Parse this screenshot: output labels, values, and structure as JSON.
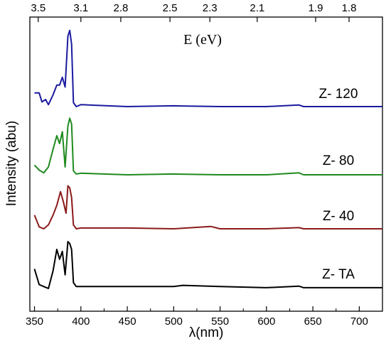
{
  "chart_data": {
    "type": "line",
    "xlabel": "λ(nm)",
    "ylabel": "Intensity (abu)",
    "top_axis_label": "E (eV)",
    "xlim": [
      345,
      725
    ],
    "x_ticks": [
      350,
      400,
      450,
      500,
      550,
      600,
      650,
      700
    ],
    "top_ticks": [
      {
        "label": "3.5",
        "nm": 354
      },
      {
        "label": "3.1",
        "nm": 400
      },
      {
        "label": "2.8",
        "nm": 443
      },
      {
        "label": "2.5",
        "nm": 496
      },
      {
        "label": "2.3",
        "nm": 539
      },
      {
        "label": "2.1",
        "nm": 590
      },
      {
        "label": "1.9",
        "nm": 653
      },
      {
        "label": "1.8",
        "nm": 689
      }
    ],
    "y_ticks_shown": false,
    "grid": false,
    "series": [
      {
        "name": "Z- 120",
        "color": "#1a1aa0",
        "points": [
          [
            350,
            0.35
          ],
          [
            355,
            0.35
          ],
          [
            358,
            0.12
          ],
          [
            362,
            0.18
          ],
          [
            365,
            0.05
          ],
          [
            370,
            0.3
          ],
          [
            374,
            0.55
          ],
          [
            377,
            0.55
          ],
          [
            380,
            0.75
          ],
          [
            383,
            0.5
          ],
          [
            386,
            1.8
          ],
          [
            388,
            1.95
          ],
          [
            390,
            1.6
          ],
          [
            392,
            0.1
          ],
          [
            395,
            0.0
          ],
          [
            400,
            0.05
          ],
          [
            450,
            0.0
          ],
          [
            500,
            0.02
          ],
          [
            550,
            0.0
          ],
          [
            600,
            0.0
          ],
          [
            635,
            0.04
          ],
          [
            640,
            0.0
          ],
          [
            700,
            0.0
          ],
          [
            725,
            0.0
          ]
        ]
      },
      {
        "name": "Z- 80",
        "color": "#1f8a1f",
        "points": [
          [
            350,
            0.25
          ],
          [
            355,
            0.12
          ],
          [
            360,
            0.05
          ],
          [
            365,
            0.2
          ],
          [
            370,
            0.65
          ],
          [
            374,
            1.0
          ],
          [
            377,
            0.8
          ],
          [
            380,
            1.1
          ],
          [
            383,
            0.2
          ],
          [
            386,
            1.25
          ],
          [
            388,
            1.45
          ],
          [
            390,
            1.3
          ],
          [
            392,
            0.1
          ],
          [
            395,
            0.02
          ],
          [
            400,
            0.04
          ],
          [
            450,
            0.0
          ],
          [
            500,
            0.02
          ],
          [
            550,
            0.0
          ],
          [
            600,
            0.0
          ],
          [
            635,
            0.05
          ],
          [
            640,
            0.0
          ],
          [
            700,
            0.0
          ],
          [
            725,
            0.0
          ]
        ]
      },
      {
        "name": "Z- 40",
        "color": "#8b1a1a",
        "points": [
          [
            350,
            0.35
          ],
          [
            355,
            0.05
          ],
          [
            360,
            0.0
          ],
          [
            365,
            0.1
          ],
          [
            370,
            0.35
          ],
          [
            374,
            0.6
          ],
          [
            378,
            0.95
          ],
          [
            381,
            0.7
          ],
          [
            384,
            0.4
          ],
          [
            386,
            1.1
          ],
          [
            388,
            1.05
          ],
          [
            390,
            0.8
          ],
          [
            392,
            0.1
          ],
          [
            395,
            0.0
          ],
          [
            400,
            0.02
          ],
          [
            450,
            0.02
          ],
          [
            500,
            0.0
          ],
          [
            540,
            0.06
          ],
          [
            550,
            0.0
          ],
          [
            600,
            0.0
          ],
          [
            635,
            0.03
          ],
          [
            640,
            0.0
          ],
          [
            700,
            0.0
          ],
          [
            725,
            0.0
          ]
        ]
      },
      {
        "name": "Z- TA",
        "color": "#000000",
        "points": [
          [
            350,
            0.5
          ],
          [
            355,
            0.1
          ],
          [
            360,
            0.05
          ],
          [
            365,
            0.0
          ],
          [
            370,
            0.45
          ],
          [
            374,
            1.0
          ],
          [
            377,
            0.75
          ],
          [
            380,
            0.95
          ],
          [
            383,
            0.35
          ],
          [
            386,
            1.2
          ],
          [
            388,
            1.15
          ],
          [
            390,
            1.0
          ],
          [
            392,
            0.15
          ],
          [
            395,
            0.05
          ],
          [
            400,
            0.05
          ],
          [
            450,
            0.05
          ],
          [
            500,
            0.05
          ],
          [
            510,
            0.08
          ],
          [
            550,
            0.05
          ],
          [
            600,
            0.02
          ],
          [
            635,
            0.06
          ],
          [
            640,
            0.02
          ],
          [
            700,
            0.02
          ],
          [
            725,
            0.02
          ]
        ]
      }
    ]
  }
}
